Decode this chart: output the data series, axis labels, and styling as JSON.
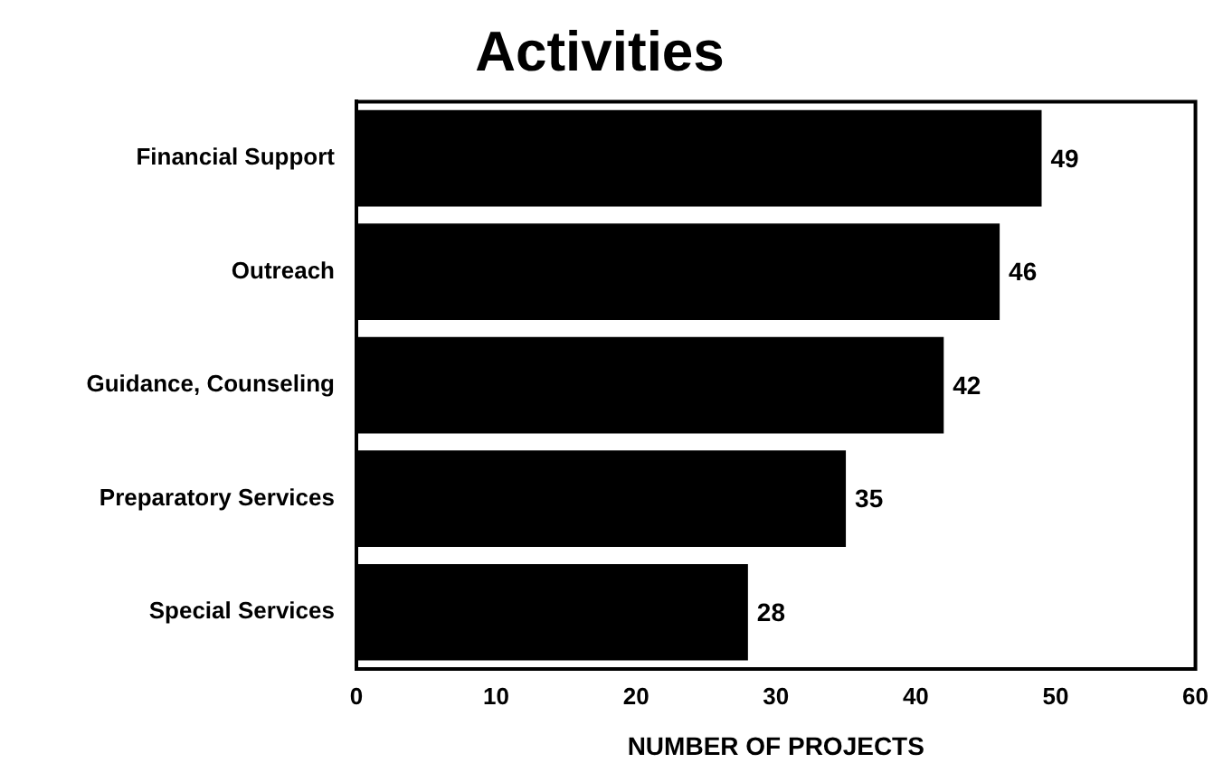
{
  "chart_data": {
    "type": "bar",
    "orientation": "horizontal",
    "title": "Activities",
    "xlabel": "NUMBER OF PROJECTS",
    "categories": [
      "Financial Support",
      "Outreach",
      "Guidance, Counseling",
      "Preparatory Services",
      "Special Services"
    ],
    "values": [
      49,
      46,
      42,
      35,
      28
    ],
    "color": "#000000",
    "xlim": [
      0,
      60
    ],
    "xticks": [
      0,
      10,
      20,
      30,
      40,
      50,
      60
    ],
    "data_labels": true
  }
}
